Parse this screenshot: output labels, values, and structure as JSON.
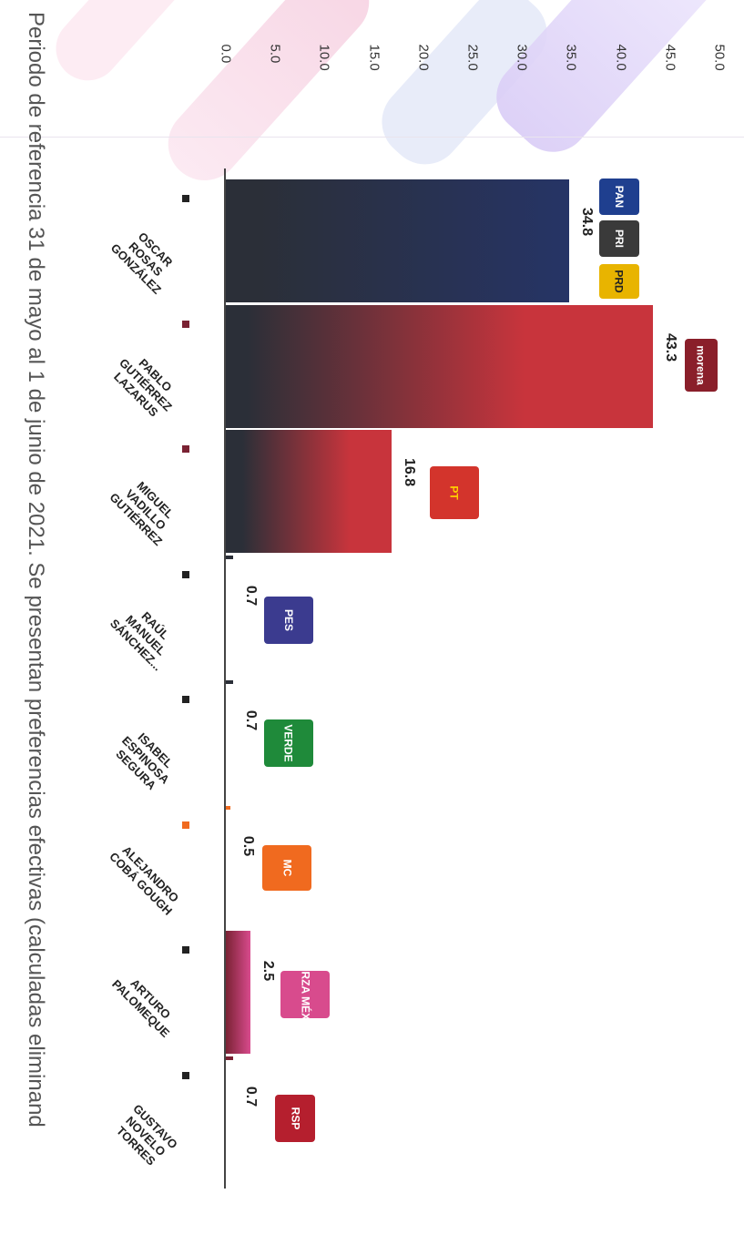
{
  "caption": "Periodo de referencia 31 de mayo al 1 de junio de 2021. Se presentan preferencias efectivas (calculadas eliminand",
  "logos": {
    "oscar": [
      "PAN",
      "PRI",
      "PRD"
    ],
    "pablo": [
      "morena"
    ],
    "miguel": [
      "PT"
    ],
    "raul": [
      "PES"
    ],
    "isabel": [
      "VERDE"
    ],
    "alejandro": [
      "MC"
    ],
    "arturo": [
      "FUERZA MÉXICO"
    ],
    "gustavo": [
      "RSP"
    ]
  },
  "colors": {
    "dark": "#2b2f38",
    "navy": "#263466",
    "red": "#c8343c",
    "maroon": "#7a2233",
    "green": "#1f8a3a",
    "orange": "#f06a1f",
    "pink": "#d84b8d",
    "pes": "#3b3b8f",
    "pt": "#d3342c",
    "rsp": "#b51f2e"
  },
  "chart_data": {
    "type": "bar",
    "orientation": "vertical-rotated",
    "categories": [
      "OSCAR\nROSAS\nGONZÁLEZ",
      "PABLO\nGUTIÉRREZ\nLAZARUS",
      "MIGUEL\nVADILLO\nGUTIÉRREZ",
      "RAÚL\nMANUEL\nSÁNCHEZ...",
      "ISABEL\nESPINOSA\nSEGURA",
      "ALEJANDRO\nCOBÁ GOUGH",
      "ARTURO\nPALOMEQUE",
      "GUSTAVO\nNOVELO\nTORRES"
    ],
    "values": [
      34.8,
      43.3,
      16.8,
      0.7,
      0.7,
      0.5,
      2.5,
      0.7
    ],
    "labels": [
      "34.8",
      "43.3",
      "16.8",
      "0.7",
      "0.7",
      "0.5",
      "2.5",
      "0.7"
    ],
    "ylim": [
      0,
      50
    ],
    "yticks": [
      "0.0",
      "5.0",
      "10.0",
      "15.0",
      "20.0",
      "25.0",
      "30.0",
      "35.0",
      "40.0",
      "45.0",
      "50.0"
    ],
    "grid": false,
    "legend": "none"
  }
}
